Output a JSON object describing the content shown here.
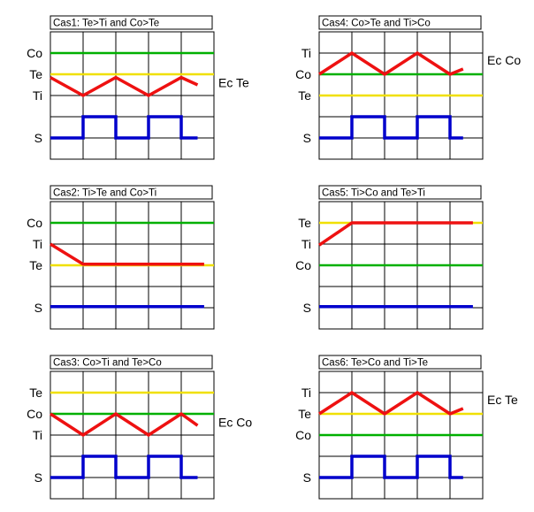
{
  "colors": {
    "green": "#00b000",
    "yellow": "#f0e000",
    "red": "#ee1111",
    "blue": "#0000cc",
    "grid": "#000000"
  },
  "panels": [
    {
      "title": "Cas1: Te>Ti and Co>Te",
      "labels": [
        "Co",
        "Te",
        "Ti",
        "S"
      ],
      "ec": "Ec Te",
      "lines": {
        "green": 1,
        "yellow": 2
      },
      "red": [
        [
          0,
          2.15
        ],
        [
          1,
          3
        ],
        [
          2,
          2.15
        ],
        [
          3,
          3
        ],
        [
          4,
          2.15
        ],
        [
          4.5,
          2.5
        ]
      ],
      "blue": [
        [
          0,
          5
        ],
        [
          1,
          5
        ],
        [
          1,
          4
        ],
        [
          2,
          4
        ],
        [
          2,
          5
        ],
        [
          3,
          5
        ],
        [
          3,
          4
        ],
        [
          4,
          4
        ],
        [
          4,
          5
        ],
        [
          4.5,
          5
        ]
      ]
    },
    {
      "title": "Cas4: Co>Te and Ti>Co",
      "labels": [
        "Ti",
        "Co",
        "Te",
        "S"
      ],
      "ec": "Ec Co",
      "lines": {
        "green": 2,
        "yellow": 3
      },
      "red": [
        [
          0,
          2
        ],
        [
          1,
          1
        ],
        [
          2,
          2
        ],
        [
          3,
          1
        ],
        [
          4,
          2
        ],
        [
          4.4,
          1.75
        ]
      ],
      "blue": [
        [
          0,
          5
        ],
        [
          1,
          5
        ],
        [
          1,
          4
        ],
        [
          2,
          4
        ],
        [
          2,
          5
        ],
        [
          3,
          5
        ],
        [
          3,
          4
        ],
        [
          4,
          4
        ],
        [
          4,
          5
        ],
        [
          4.4,
          5
        ]
      ]
    },
    {
      "title": "Cas2: Ti>Te and Co>Ti",
      "labels": [
        "Co",
        "Ti",
        "Te",
        "S"
      ],
      "ec": "",
      "lines": {
        "green": 1,
        "yellow": 3
      },
      "red": [
        [
          0,
          2
        ],
        [
          1,
          2.95
        ],
        [
          4.7,
          2.95
        ]
      ],
      "blue": [
        [
          0,
          4.95
        ],
        [
          4.7,
          4.95
        ]
      ]
    },
    {
      "title": "Cas5: Ti>Co and Te>Ti",
      "labels": [
        "Te",
        "Ti",
        "Co",
        "S"
      ],
      "ec": "",
      "lines": {
        "green": 3,
        "yellow": 1
      },
      "red": [
        [
          0,
          2.05
        ],
        [
          1,
          1
        ],
        [
          4.7,
          1
        ]
      ],
      "blue": [
        [
          0,
          4.95
        ],
        [
          4.7,
          4.95
        ]
      ]
    },
    {
      "title": "Cas3: Co>Ti and Te>Co",
      "labels": [
        "Te",
        "Co",
        "Ti",
        "S"
      ],
      "ec": "Ec Co",
      "lines": {
        "green": 2,
        "yellow": 1
      },
      "red": [
        [
          0,
          2
        ],
        [
          1,
          3
        ],
        [
          2,
          2
        ],
        [
          3,
          3
        ],
        [
          4,
          2
        ],
        [
          4.5,
          2.55
        ]
      ],
      "blue": [
        [
          0,
          5
        ],
        [
          1,
          5
        ],
        [
          1,
          4
        ],
        [
          2,
          4
        ],
        [
          2,
          5
        ],
        [
          3,
          5
        ],
        [
          3,
          4
        ],
        [
          4,
          4
        ],
        [
          4,
          5
        ],
        [
          4.5,
          5
        ]
      ]
    },
    {
      "title": "Cas6: Te>Co and Ti>Te",
      "labels": [
        "Ti",
        "Te",
        "Co",
        "S"
      ],
      "ec": "Ec Te",
      "lines": {
        "green": 3,
        "yellow": 2
      },
      "red": [
        [
          0,
          2
        ],
        [
          1,
          1
        ],
        [
          2,
          2
        ],
        [
          3,
          1
        ],
        [
          4,
          2
        ],
        [
          4.4,
          1.75
        ]
      ],
      "blue": [
        [
          0,
          5
        ],
        [
          1,
          5
        ],
        [
          1,
          4
        ],
        [
          2,
          4
        ],
        [
          2,
          5
        ],
        [
          3,
          5
        ],
        [
          3,
          4
        ],
        [
          4,
          4
        ],
        [
          4,
          5
        ],
        [
          4.4,
          5
        ]
      ]
    }
  ]
}
